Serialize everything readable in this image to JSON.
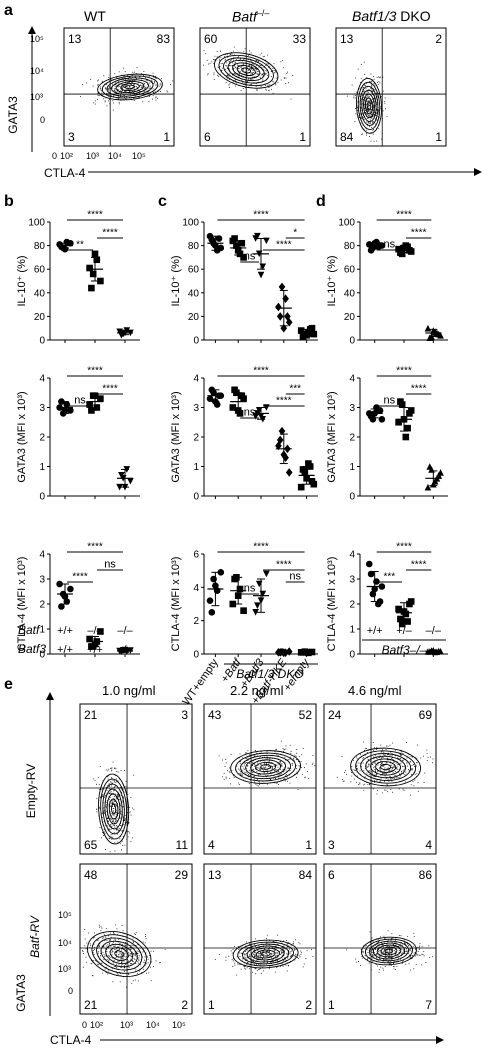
{
  "panels": {
    "a": "a",
    "b": "b",
    "c": "c",
    "d": "d",
    "e": "e"
  },
  "a": {
    "titles": [
      "WT",
      "Batf",
      "–/–",
      "Batf1/3",
      " DKO"
    ],
    "quadrants": [
      [
        "13",
        "83",
        "3",
        "1"
      ],
      [
        "60",
        "33",
        "6",
        "1"
      ],
      [
        "13",
        "2",
        "84",
        "1"
      ]
    ],
    "y_axis": "GATA3",
    "x_axis": "CTLA-4",
    "y_ticks": [
      "10⁵",
      "10⁴",
      "10³",
      "0"
    ],
    "x_ticks": [
      "0",
      "10²",
      "10³",
      "10⁴",
      "10⁵"
    ]
  },
  "stars": {
    "s4": "****",
    "s2": "**",
    "s3": "***",
    "s1": "*",
    "ns": "ns"
  },
  "ylabels": {
    "il10": "IL-10⁺ (%)",
    "gata3": "GATA3 (MFI x 10³)",
    "ctla4": "CTLA-4 (MFI x 10³)"
  },
  "b_x": {
    "batf_row": "Batf",
    "batf3_row": "Batf3",
    "batf": [
      "+/+",
      "–/–",
      "–/–"
    ],
    "batf3": [
      "+/+",
      "+/+",
      "–/–"
    ]
  },
  "c_x": {
    "cats": [
      "WT+empty",
      "+Batf",
      "+Batf3",
      "+Batf-HKE",
      "+empty"
    ],
    "group": "Batf1/3 DKO"
  },
  "d_x": {
    "cats": [
      "+/+",
      "+/–",
      "–/–"
    ],
    "group": "Batf3–/–"
  },
  "e": {
    "conc": [
      "1.0 ng/ml",
      "2.2 ng/ml",
      "4.6 ng/ml"
    ],
    "row_labels": [
      "Empty-RV",
      "Batf-RV"
    ],
    "quadrants": [
      [
        "21",
        "3",
        "65",
        "11"
      ],
      [
        "43",
        "52",
        "4",
        "1"
      ],
      [
        "24",
        "69",
        "3",
        "4"
      ],
      [
        "48",
        "29",
        "21",
        "2"
      ],
      [
        "13",
        "84",
        "1",
        "2"
      ],
      [
        "6",
        "86",
        "1",
        "7"
      ]
    ],
    "y_axis": "GATA3",
    "x_axis": "CTLA-4",
    "y_ticks": [
      "10⁵",
      "10⁴",
      "10³",
      "0"
    ],
    "x_ticks": [
      "0",
      "10²",
      "10³",
      "10⁴",
      "10⁵"
    ]
  },
  "chart_data": [
    {
      "type": "scatter",
      "panel": "b",
      "ylabel": "IL-10⁺ (%)",
      "ylim": [
        0,
        100
      ],
      "yticks": [
        "0",
        "20",
        "40",
        "60",
        "80",
        "100"
      ],
      "categories": [
        "+/+ +/+",
        "–/– +/+",
        "–/– –/–"
      ],
      "series": [
        {
          "values": [
            [
              81,
              78,
              83,
              82,
              79,
              77
            ],
            [
              61,
              56,
              68,
              50,
              44,
              73
            ],
            [
              7,
              5,
              8,
              6,
              4,
              6
            ]
          ]
        }
      ],
      "means": [
        80,
        60,
        6
      ],
      "sd": [
        2,
        10,
        1.5
      ],
      "comparisons": [
        {
          "a": 0,
          "b": 1,
          "label": "**"
        },
        {
          "a": 1,
          "b": 2,
          "label": "****"
        },
        {
          "a": 0,
          "b": 2,
          "label": "****"
        }
      ]
    },
    {
      "type": "scatter",
      "panel": "b",
      "ylabel": "GATA3 (MFI x 10³)",
      "ylim": [
        0,
        4
      ],
      "yticks": [
        "0",
        "1",
        "2",
        "3",
        "4"
      ],
      "categories": [
        "+/+ +/+",
        "–/– +/+",
        "–/– –/–"
      ],
      "series": [
        {
          "values": [
            [
              3.0,
              2.8,
              3.1,
              2.9,
              3.2,
              2.9
            ],
            [
              3.1,
              3.4,
              3.0,
              3.3,
              2.9,
              3.4
            ],
            [
              0.3,
              0.6,
              0.9,
              0.5,
              0.7,
              0.3
            ]
          ]
        }
      ],
      "means": [
        3.0,
        3.2,
        0.6
      ],
      "sd": [
        0.2,
        0.25,
        0.3
      ],
      "comparisons": [
        {
          "a": 0,
          "b": 1,
          "label": "ns"
        },
        {
          "a": 1,
          "b": 2,
          "label": "****"
        },
        {
          "a": 0,
          "b": 2,
          "label": "****"
        }
      ]
    },
    {
      "type": "scatter",
      "panel": "b",
      "ylabel": "CTLA-4 (MFI x 10³)",
      "ylim": [
        0,
        4
      ],
      "yticks": [
        "0",
        "1",
        "2",
        "3",
        "4"
      ],
      "categories": [
        "+/+ +/+",
        "–/– +/+",
        "–/– –/–"
      ],
      "series": [
        {
          "values": [
            [
              2.8,
              2.4,
              2.1,
              2.6,
              1.9,
              2.3
            ],
            [
              0.6,
              0.3,
              0.5,
              0.9,
              0.3,
              0.4
            ],
            [
              0.12,
              0.15,
              0.1,
              0.14,
              0.08,
              0.16
            ]
          ]
        }
      ],
      "means": [
        2.4,
        0.5,
        0.12
      ],
      "sd": [
        0.4,
        0.2,
        0.05
      ],
      "comparisons": [
        {
          "a": 0,
          "b": 1,
          "label": "****"
        },
        {
          "a": 1,
          "b": 2,
          "label": "ns"
        },
        {
          "a": 0,
          "b": 2,
          "label": "****"
        }
      ]
    },
    {
      "type": "scatter",
      "panel": "c",
      "ylabel": "IL-10⁺ (%)",
      "ylim": [
        0,
        100
      ],
      "yticks": [
        "0",
        "20",
        "40",
        "60",
        "80",
        "100"
      ],
      "categories": [
        "WT+empty",
        "+Batf",
        "+Batf3",
        "+Batf-HKE",
        "+empty"
      ],
      "series": [
        {
          "values": [
            [
              88,
              82,
              76,
              78,
              85,
              80,
              86
            ],
            [
              84,
              80,
              73,
              70,
              86,
              76,
              82
            ],
            [
              86,
              73,
              62,
              84,
              88,
              55
            ],
            [
              28,
              45,
              35,
              15,
              20,
              10,
              20
            ],
            [
              8,
              5,
              6,
              10,
              3,
              4,
              9,
              5
            ]
          ]
        }
      ],
      "means": [
        82,
        78,
        73,
        27,
        6
      ],
      "sd": [
        6,
        6,
        13,
        15,
        3
      ],
      "comparisons": [
        {
          "a": 1,
          "b": 2,
          "label": "ns"
        },
        {
          "a": 2,
          "b": 4,
          "label": "****"
        },
        {
          "a": 3,
          "b": 4,
          "label": "*"
        },
        {
          "a": 0,
          "b": 4,
          "label": "****"
        }
      ]
    },
    {
      "type": "scatter",
      "panel": "c",
      "ylabel": "GATA3 (MFI x 10³)",
      "ylim": [
        0,
        4
      ],
      "yticks": [
        "0",
        "1",
        "2",
        "3",
        "4"
      ],
      "categories": [
        "WT+empty",
        "+Batf",
        "+Batf3",
        "+Batf-HKE",
        "+empty"
      ],
      "series": [
        {
          "values": [
            [
              3.3,
              3.5,
              3.1,
              3.4,
              3.6,
              3.2,
              3.4
            ],
            [
              3.0,
              3.5,
              2.8,
              3.3,
              3.6,
              2.9,
              3.4
            ],
            [
              2.7,
              2.9,
              2.6,
              3.0,
              2.8,
              2.7
            ],
            [
              1.7,
              2.2,
              1.3,
              0.8,
              1.9,
              1.4,
              1.6
            ],
            [
              0.3,
              0.8,
              1.1,
              0.5,
              0.9,
              0.6,
              1.0,
              0.4
            ]
          ]
        }
      ],
      "means": [
        3.4,
        3.2,
        2.8,
        1.6,
        0.7
      ],
      "sd": [
        0.2,
        0.3,
        0.2,
        0.5,
        0.3
      ],
      "comparisons": [
        {
          "a": 1,
          "b": 2,
          "label": "ns"
        },
        {
          "a": 2,
          "b": 4,
          "label": "****"
        },
        {
          "a": 3,
          "b": 4,
          "label": "***"
        },
        {
          "a": 0,
          "b": 4,
          "label": "****"
        }
      ]
    },
    {
      "type": "scatter",
      "panel": "c",
      "ylabel": "CTLA-4 (MFI x 10³)",
      "ylim": [
        0,
        6
      ],
      "yticks": [
        "0",
        "2",
        "4",
        "6"
      ],
      "categories": [
        "WT+empty",
        "+Batf",
        "+Batf3",
        "+Batf-HKE",
        "+empty"
      ],
      "series": [
        {
          "values": [
            [
              3.2,
              4.5,
              3.8,
              4.9,
              2.5,
              4.1
            ],
            [
              3.0,
              4.6,
              3.9,
              2.6,
              4.5,
              3.5
            ],
            [
              2.5,
              4.2,
              3.6,
              4.8,
              2.9,
              3.2
            ],
            [
              0.1,
              0.12,
              0.08,
              0.15,
              0.1,
              0.09
            ],
            [
              0.1,
              0.14,
              0.07,
              0.12,
              0.1,
              0.11
            ]
          ]
        }
      ],
      "means": [
        3.9,
        3.8,
        3.5,
        0.1,
        0.1
      ],
      "sd": [
        1.0,
        0.8,
        1.0,
        0.05,
        0.05
      ],
      "comparisons": [
        {
          "a": 1,
          "b": 2,
          "label": "ns"
        },
        {
          "a": 3,
          "b": 4,
          "label": "ns"
        },
        {
          "a": 2,
          "b": 4,
          "label": "****"
        },
        {
          "a": 0,
          "b": 4,
          "label": "****"
        }
      ]
    },
    {
      "type": "scatter",
      "panel": "d",
      "ylabel": "IL-10⁺ (%)",
      "ylim": [
        0,
        100
      ],
      "yticks": [
        "0",
        "20",
        "40",
        "60",
        "80",
        "100"
      ],
      "categories": [
        "+/+",
        "+/–",
        "–/–"
      ],
      "series": [
        {
          "values": [
            [
              81,
              78,
              83,
              80,
              76,
              82,
              79,
              80
            ],
            [
              77,
              73,
              80,
              76,
              74,
              78,
              79,
              75
            ],
            [
              10,
              3,
              7,
              5,
              2,
              8,
              6,
              4
            ]
          ]
        }
      ],
      "means": [
        80,
        77,
        6
      ],
      "sd": [
        2,
        3,
        3
      ],
      "comparisons": [
        {
          "a": 0,
          "b": 1,
          "label": "ns"
        },
        {
          "a": 1,
          "b": 2,
          "label": "****"
        },
        {
          "a": 0,
          "b": 2,
          "label": "****"
        }
      ]
    },
    {
      "type": "scatter",
      "panel": "d",
      "ylabel": "GATA3 (MFI x 10³)",
      "ylim": [
        0,
        4
      ],
      "yticks": [
        "0",
        "1",
        "2",
        "3",
        "4"
      ],
      "categories": [
        "+/+",
        "+/–",
        "–/–"
      ],
      "series": [
        {
          "values": [
            [
              2.8,
              2.6,
              3.0,
              2.9,
              2.7,
              2.8,
              2.9,
              2.6
            ],
            [
              2.5,
              3.1,
              2.0,
              2.8,
              3.2,
              2.6,
              2.3,
              2.9
            ],
            [
              0.3,
              0.9,
              0.5,
              0.7,
              1.0,
              0.4,
              0.6,
              0.8
            ]
          ]
        }
      ],
      "means": [
        2.8,
        2.6,
        0.6
      ],
      "sd": [
        0.15,
        0.4,
        0.25
      ],
      "comparisons": [
        {
          "a": 0,
          "b": 1,
          "label": "ns"
        },
        {
          "a": 1,
          "b": 2,
          "label": "****"
        },
        {
          "a": 0,
          "b": 2,
          "label": "****"
        }
      ]
    },
    {
      "type": "scatter",
      "panel": "d",
      "ylabel": "CTLA-4 (MFI x 10³)",
      "ylim": [
        0,
        4
      ],
      "yticks": [
        "0",
        "1",
        "2",
        "3",
        "4"
      ],
      "categories": [
        "+/+",
        "+/–",
        "–/–"
      ],
      "series": [
        {
          "values": [
            [
              3.6,
              2.4,
              2.9,
              2.1,
              3.2,
              2.6,
              2.0,
              2.7
            ],
            [
              1.8,
              1.2,
              1.6,
              2.0,
              1.4,
              1.7,
              1.3,
              2.1
            ],
            [
              0.1,
              0.14,
              0.08,
              0.12,
              0.1,
              0.15,
              0.09,
              0.11
            ]
          ]
        }
      ],
      "means": [
        2.7,
        1.65,
        0.11
      ],
      "sd": [
        0.6,
        0.4,
        0.05
      ],
      "comparisons": [
        {
          "a": 0,
          "b": 1,
          "label": "***"
        },
        {
          "a": 1,
          "b": 2,
          "label": "****"
        },
        {
          "a": 0,
          "b": 2,
          "label": "****"
        }
      ]
    }
  ]
}
